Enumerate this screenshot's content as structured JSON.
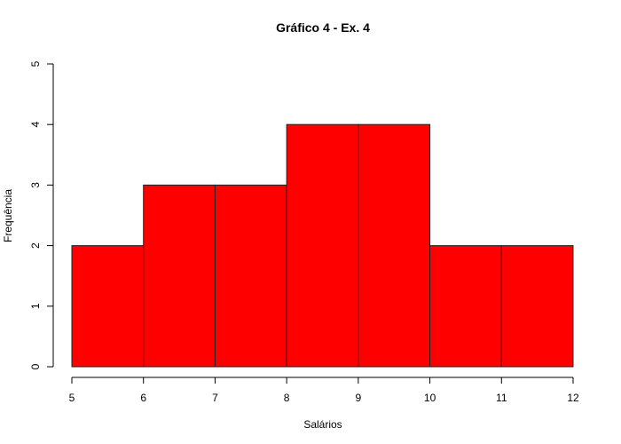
{
  "chart_data": {
    "type": "bar",
    "title": "Gráfico 4 - Ex. 4",
    "xlabel": "Salários",
    "ylabel": "Frequência",
    "bins": [
      {
        "from": 5,
        "to": 6,
        "value": 2
      },
      {
        "from": 6,
        "to": 7,
        "value": 3
      },
      {
        "from": 7,
        "to": 8,
        "value": 3
      },
      {
        "from": 8,
        "to": 9,
        "value": 4
      },
      {
        "from": 9,
        "to": 10,
        "value": 4
      },
      {
        "from": 10,
        "to": 11,
        "value": 2
      },
      {
        "from": 11,
        "to": 12,
        "value": 2
      }
    ],
    "xlim": [
      5,
      12
    ],
    "ylim": [
      0,
      5
    ],
    "xticks": [
      "5",
      "6",
      "7",
      "8",
      "9",
      "10",
      "11",
      "12"
    ],
    "yticks": [
      "0",
      "1",
      "2",
      "3",
      "4",
      "5"
    ],
    "bar_color": "#ff0000",
    "grid": false
  }
}
